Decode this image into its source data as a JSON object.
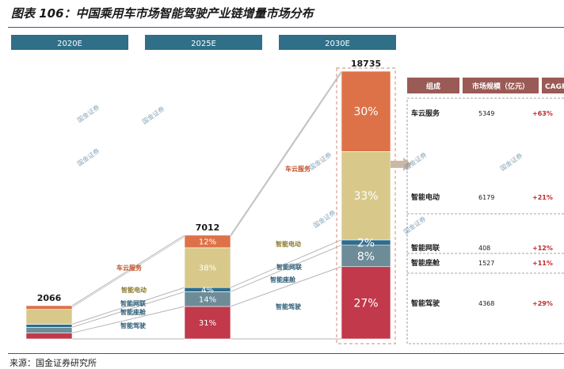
{
  "title": "图表 106：中国乘用车市场智能驾驶产业链增量市场分布",
  "source": "来源：国金证券研究所",
  "watermark": "国金证券",
  "chart_data": {
    "type": "bar",
    "stacking": "percent",
    "categories": [
      "2020E",
      "2025E",
      "2030E"
    ],
    "totals": [
      2066,
      7012,
      18735
    ],
    "series": [
      {
        "name": "智能驾驶",
        "color": "#c1394b",
        "values": [
          null,
          31,
          27
        ]
      },
      {
        "name": "智能座舱",
        "color": "#6d8c98",
        "values": [
          null,
          14,
          8
        ]
      },
      {
        "name": "智能网联",
        "color": "#2e6d8e",
        "values": [
          null,
          4,
          2
        ]
      },
      {
        "name": "智能电动",
        "color": "#d8c98a",
        "values": [
          null,
          38,
          33
        ]
      },
      {
        "name": "车云服务",
        "color": "#dd7248",
        "values": [
          null,
          12,
          30
        ]
      }
    ],
    "value_labels": {
      "2025E": [
        "31%",
        "14%",
        "4%",
        "38%",
        "12%"
      ],
      "2030E": [
        "27%",
        "8%",
        "2%",
        "33%",
        "30%"
      ]
    },
    "table": {
      "headers": [
        "组成",
        "市场规模（亿元）",
        "CAGR"
      ],
      "rows": [
        {
          "name": "车云服务",
          "size": "5349",
          "cagr": "+63%"
        },
        {
          "name": "智能电动",
          "size": "6179",
          "cagr": "+21%"
        },
        {
          "name": "智能网联",
          "size": "408",
          "cagr": "+12%"
        },
        {
          "name": "智能座舱",
          "size": "1527",
          "cagr": "+11%"
        },
        {
          "name": "智能驾驶",
          "size": "4368",
          "cagr": "+29%"
        }
      ]
    }
  }
}
